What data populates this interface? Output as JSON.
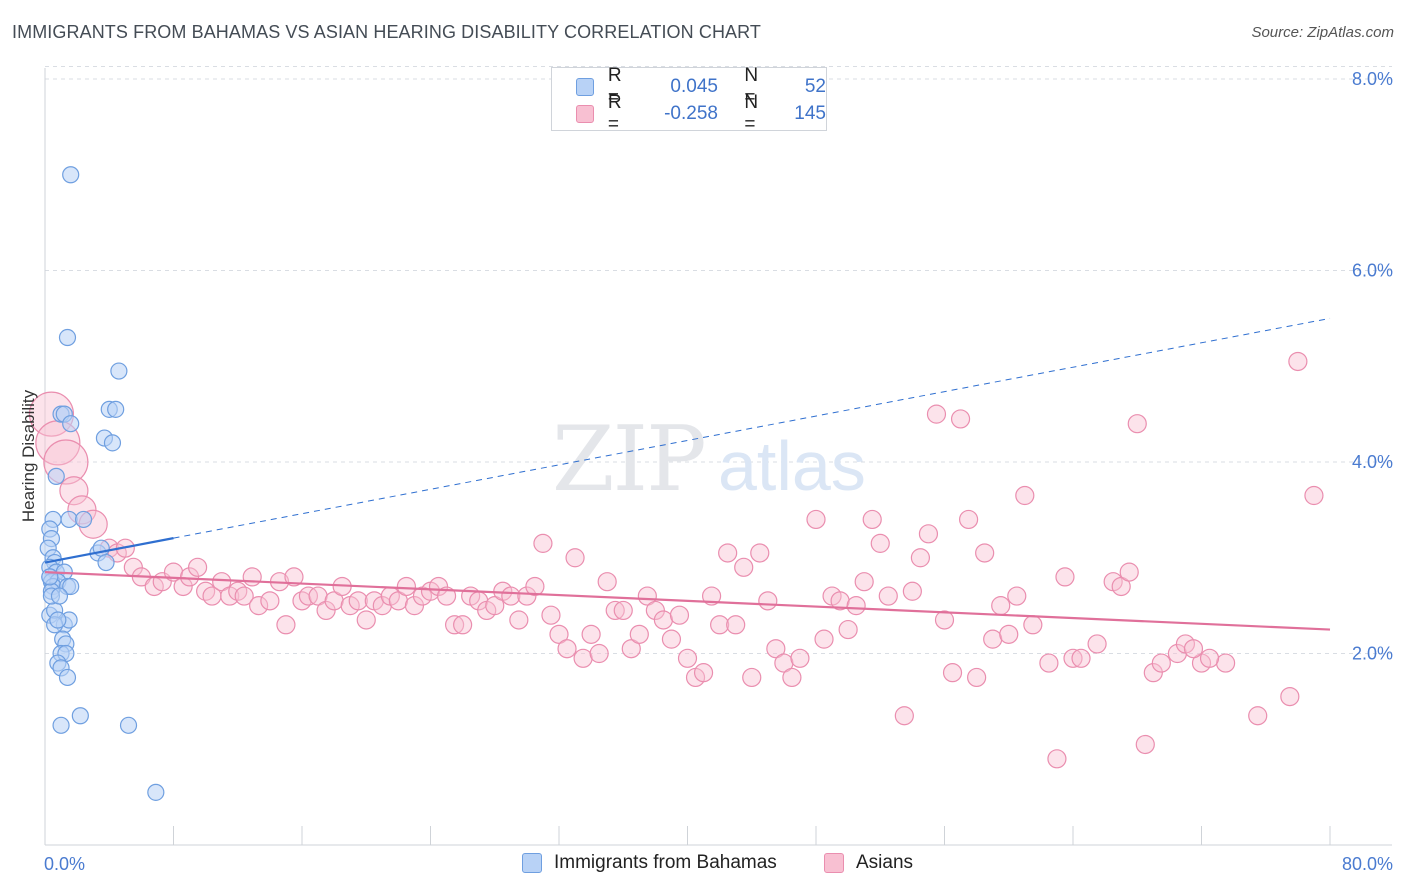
{
  "title": "IMMIGRANTS FROM BAHAMAS VS ASIAN HEARING DISABILITY CORRELATION CHART",
  "source": "Source: ZipAtlas.com",
  "watermark": {
    "zip": "ZIP",
    "atlas": "atlas"
  },
  "legend": {
    "rows": [
      {
        "r_label": "R =",
        "r_value": "0.045",
        "n_label": "N =",
        "n_value": "52"
      },
      {
        "r_label": "R =",
        "r_value": "-0.258",
        "n_label": "N =",
        "n_value": "145"
      }
    ]
  },
  "bottom_legend": [
    "Immigrants from Bahamas",
    "Asians"
  ],
  "colors": {
    "blue": "#6f9fe0",
    "blue_fill": "#b8d2f6",
    "pink": "#ea8eaf",
    "pink_fill": "#f8c0d2",
    "blue_line": "#2f6fd0",
    "pink_line": "#e0709a"
  },
  "chart_data": {
    "type": "scatter",
    "title": "IMMIGRANTS FROM BAHAMAS VS ASIAN HEARING DISABILITY CORRELATION CHART",
    "ylabel": "Hearing Disability",
    "xlabel": "",
    "xlim": [
      0,
      80
    ],
    "ylim": [
      0,
      8.5
    ],
    "x_tick_labels": [
      "0.0%",
      "80.0%"
    ],
    "y_ticks": [
      2,
      4,
      6,
      8
    ],
    "y_tick_labels": [
      "2.0%",
      "4.0%",
      "6.0%",
      "8.0%"
    ],
    "grid": true,
    "series": [
      {
        "name": "Immigrants from Bahamas",
        "color": "#6f9fe0",
        "points": [
          [
            1.6,
            7.0
          ],
          [
            1.4,
            5.3
          ],
          [
            4.6,
            4.95
          ],
          [
            1.0,
            4.5
          ],
          [
            1.2,
            4.5
          ],
          [
            4.0,
            4.55
          ],
          [
            4.4,
            4.55
          ],
          [
            1.6,
            4.4
          ],
          [
            3.7,
            4.25
          ],
          [
            4.2,
            4.2
          ],
          [
            0.7,
            3.85
          ],
          [
            0.5,
            3.4
          ],
          [
            1.5,
            3.4
          ],
          [
            2.4,
            3.4
          ],
          [
            0.3,
            3.3
          ],
          [
            0.4,
            3.2
          ],
          [
            0.2,
            3.1
          ],
          [
            3.3,
            3.05
          ],
          [
            3.5,
            3.1
          ],
          [
            0.5,
            3.0
          ],
          [
            0.6,
            2.95
          ],
          [
            3.8,
            2.95
          ],
          [
            0.3,
            2.9
          ],
          [
            0.7,
            2.85
          ],
          [
            1.2,
            2.85
          ],
          [
            0.3,
            2.8
          ],
          [
            0.4,
            2.75
          ],
          [
            0.8,
            2.75
          ],
          [
            0.5,
            2.7
          ],
          [
            1.4,
            2.7
          ],
          [
            1.6,
            2.7
          ],
          [
            0.4,
            2.65
          ],
          [
            0.3,
            2.4
          ],
          [
            0.6,
            2.45
          ],
          [
            1.2,
            2.3
          ],
          [
            1.5,
            2.35
          ],
          [
            0.6,
            2.3
          ],
          [
            0.8,
            2.35
          ],
          [
            1.1,
            2.15
          ],
          [
            1.3,
            2.1
          ],
          [
            1.0,
            2.0
          ],
          [
            1.3,
            2.0
          ],
          [
            0.8,
            1.9
          ],
          [
            1.0,
            1.85
          ],
          [
            1.4,
            1.75
          ],
          [
            2.2,
            1.35
          ],
          [
            1.0,
            1.25
          ],
          [
            5.2,
            1.25
          ],
          [
            6.9,
            0.55
          ],
          [
            0.3,
            2.8
          ],
          [
            0.4,
            2.6
          ],
          [
            0.9,
            2.6
          ]
        ]
      },
      {
        "name": "Asians",
        "color": "#ea8eaf",
        "points": [
          [
            0.4,
            4.5
          ],
          [
            0.8,
            4.2
          ],
          [
            1.3,
            4.0
          ],
          [
            1.8,
            3.7
          ],
          [
            2.3,
            3.5
          ],
          [
            3.0,
            3.35
          ],
          [
            4.0,
            3.1
          ],
          [
            4.5,
            3.05
          ],
          [
            5.0,
            3.1
          ],
          [
            5.5,
            2.9
          ],
          [
            6.0,
            2.8
          ],
          [
            6.8,
            2.7
          ],
          [
            7.3,
            2.75
          ],
          [
            8.0,
            2.85
          ],
          [
            8.6,
            2.7
          ],
          [
            9.0,
            2.8
          ],
          [
            9.5,
            2.9
          ],
          [
            10.0,
            2.65
          ],
          [
            10.4,
            2.6
          ],
          [
            11.0,
            2.75
          ],
          [
            11.5,
            2.6
          ],
          [
            12.0,
            2.65
          ],
          [
            12.4,
            2.6
          ],
          [
            12.9,
            2.8
          ],
          [
            13.3,
            2.5
          ],
          [
            14.0,
            2.55
          ],
          [
            14.6,
            2.75
          ],
          [
            15.0,
            2.3
          ],
          [
            15.5,
            2.8
          ],
          [
            16.0,
            2.55
          ],
          [
            16.4,
            2.6
          ],
          [
            17.0,
            2.6
          ],
          [
            17.5,
            2.45
          ],
          [
            18.0,
            2.55
          ],
          [
            18.5,
            2.7
          ],
          [
            19.0,
            2.5
          ],
          [
            19.5,
            2.55
          ],
          [
            20.0,
            2.35
          ],
          [
            20.5,
            2.55
          ],
          [
            21.0,
            2.5
          ],
          [
            21.5,
            2.6
          ],
          [
            22.0,
            2.55
          ],
          [
            22.5,
            2.7
          ],
          [
            23.0,
            2.5
          ],
          [
            23.5,
            2.6
          ],
          [
            24.0,
            2.65
          ],
          [
            24.5,
            2.7
          ],
          [
            25.0,
            2.6
          ],
          [
            25.5,
            2.3
          ],
          [
            26.0,
            2.3
          ],
          [
            26.5,
            2.6
          ],
          [
            27.0,
            2.55
          ],
          [
            27.5,
            2.45
          ],
          [
            28.0,
            2.5
          ],
          [
            28.5,
            2.65
          ],
          [
            29.0,
            2.6
          ],
          [
            29.5,
            2.35
          ],
          [
            30.0,
            2.6
          ],
          [
            30.5,
            2.7
          ],
          [
            31.0,
            3.15
          ],
          [
            31.5,
            2.4
          ],
          [
            32.0,
            2.2
          ],
          [
            32.5,
            2.05
          ],
          [
            33.0,
            3.0
          ],
          [
            33.5,
            1.95
          ],
          [
            34.0,
            2.2
          ],
          [
            34.5,
            2.0
          ],
          [
            35.0,
            2.75
          ],
          [
            35.5,
            2.45
          ],
          [
            36.0,
            2.45
          ],
          [
            36.5,
            2.05
          ],
          [
            37.0,
            2.2
          ],
          [
            37.5,
            2.6
          ],
          [
            38.0,
            2.45
          ],
          [
            38.5,
            2.35
          ],
          [
            39.0,
            2.15
          ],
          [
            39.5,
            2.4
          ],
          [
            40.0,
            1.95
          ],
          [
            40.5,
            1.75
          ],
          [
            41.0,
            1.8
          ],
          [
            41.5,
            2.6
          ],
          [
            42.0,
            2.3
          ],
          [
            42.5,
            3.05
          ],
          [
            43.0,
            2.3
          ],
          [
            43.5,
            2.9
          ],
          [
            44.0,
            1.75
          ],
          [
            44.5,
            3.05
          ],
          [
            45.0,
            2.55
          ],
          [
            45.5,
            2.05
          ],
          [
            46.0,
            1.9
          ],
          [
            46.5,
            1.75
          ],
          [
            47.0,
            1.95
          ],
          [
            48.0,
            3.4
          ],
          [
            48.5,
            2.15
          ],
          [
            49.0,
            2.6
          ],
          [
            49.5,
            2.55
          ],
          [
            50.0,
            2.25
          ],
          [
            50.5,
            2.5
          ],
          [
            51.0,
            2.75
          ],
          [
            51.5,
            3.4
          ],
          [
            52.0,
            3.15
          ],
          [
            52.5,
            2.6
          ],
          [
            53.5,
            1.35
          ],
          [
            54.0,
            2.65
          ],
          [
            54.5,
            3.0
          ],
          [
            55.0,
            3.25
          ],
          [
            55.5,
            4.5
          ],
          [
            56.0,
            2.35
          ],
          [
            56.5,
            1.8
          ],
          [
            57.0,
            4.45
          ],
          [
            57.5,
            3.4
          ],
          [
            58.0,
            1.75
          ],
          [
            58.5,
            3.05
          ],
          [
            59.0,
            2.15
          ],
          [
            59.5,
            2.5
          ],
          [
            60.0,
            2.2
          ],
          [
            60.5,
            2.6
          ],
          [
            61.0,
            3.65
          ],
          [
            61.5,
            2.3
          ],
          [
            62.5,
            1.9
          ],
          [
            63.0,
            0.9
          ],
          [
            63.5,
            2.8
          ],
          [
            64.0,
            1.95
          ],
          [
            64.5,
            1.95
          ],
          [
            65.5,
            2.1
          ],
          [
            66.5,
            2.75
          ],
          [
            67.0,
            2.7
          ],
          [
            67.5,
            2.85
          ],
          [
            68.0,
            4.4
          ],
          [
            68.5,
            1.05
          ],
          [
            69.0,
            1.8
          ],
          [
            69.5,
            1.9
          ],
          [
            70.5,
            2.0
          ],
          [
            71.0,
            2.1
          ],
          [
            72.0,
            1.9
          ],
          [
            73.5,
            1.9
          ],
          [
            75.5,
            1.35
          ],
          [
            77.5,
            1.55
          ],
          [
            78.0,
            5.05
          ],
          [
            79.0,
            3.65
          ],
          [
            71.5,
            2.05
          ],
          [
            72.5,
            1.95
          ]
        ]
      }
    ],
    "trend_lines": [
      {
        "series": "Immigrants from Bahamas",
        "x_start": 0,
        "y_start": 2.95,
        "x_solid_end": 8,
        "x_end": 80,
        "y_end": 5.5
      },
      {
        "series": "Asians",
        "x_start": 0,
        "y_start": 2.85,
        "x_end": 80,
        "y_end": 2.25
      }
    ]
  }
}
